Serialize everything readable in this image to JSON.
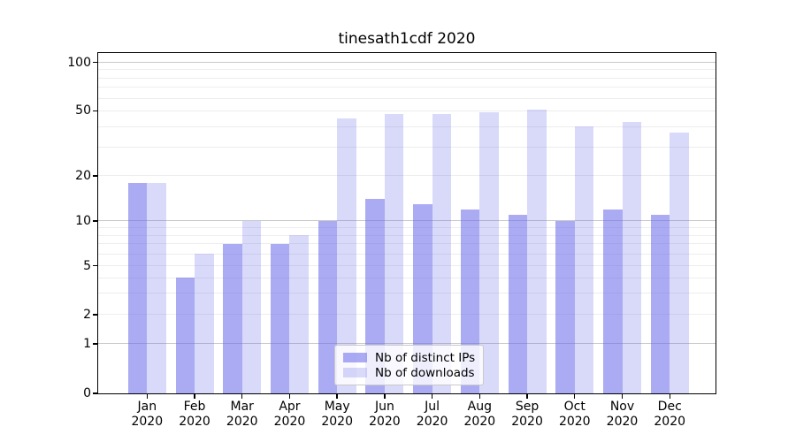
{
  "chart_data": {
    "type": "bar",
    "title": "tinesath1cdf 2020",
    "categories": [
      "Jan",
      "Feb",
      "Mar",
      "Apr",
      "May",
      "Jun",
      "Jul",
      "Aug",
      "Sep",
      "Oct",
      "Nov",
      "Dec"
    ],
    "category_year": "2020",
    "series": [
      {
        "name": "Nb of distinct IPs",
        "color": "rgba(102,102,235,0.55)",
        "values": [
          18,
          4,
          7,
          7,
          10,
          14,
          13,
          12,
          11,
          10,
          12,
          11
        ]
      },
      {
        "name": "Nb of downloads",
        "color": "rgba(102,102,235,0.25)",
        "values": [
          18,
          6,
          10,
          8,
          45,
          48,
          48,
          49,
          51,
          40,
          43,
          37
        ]
      }
    ],
    "xlabel": "",
    "ylabel": "",
    "yscale": "symlog",
    "ytick_values": [
      0,
      1,
      2,
      5,
      10,
      20,
      50,
      100
    ],
    "ytick_labels": [
      "0",
      "1",
      "2",
      "5",
      "10",
      "20",
      "50",
      "100"
    ],
    "major_gridline_values": [
      1,
      10,
      100
    ],
    "minor_gridline_values": [
      2,
      3,
      4,
      5,
      6,
      7,
      8,
      9,
      20,
      30,
      40,
      50,
      60,
      70,
      80,
      90
    ],
    "ylim": [
      0,
      115
    ],
    "grid": true,
    "legend_position": "lower center",
    "scale_anchor_fracs": [
      [
        0,
        1.0
      ],
      [
        1,
        0.8545
      ],
      [
        2,
        0.7688
      ],
      [
        5,
        0.6247
      ],
      [
        10,
        0.4935
      ],
      [
        20,
        0.361
      ],
      [
        50,
        0.1701
      ],
      [
        100,
        0.0273
      ]
    ],
    "colors": {
      "spine": "#000000",
      "major_grid": "#c9c9c9",
      "minor_grid": "#ededed"
    }
  }
}
